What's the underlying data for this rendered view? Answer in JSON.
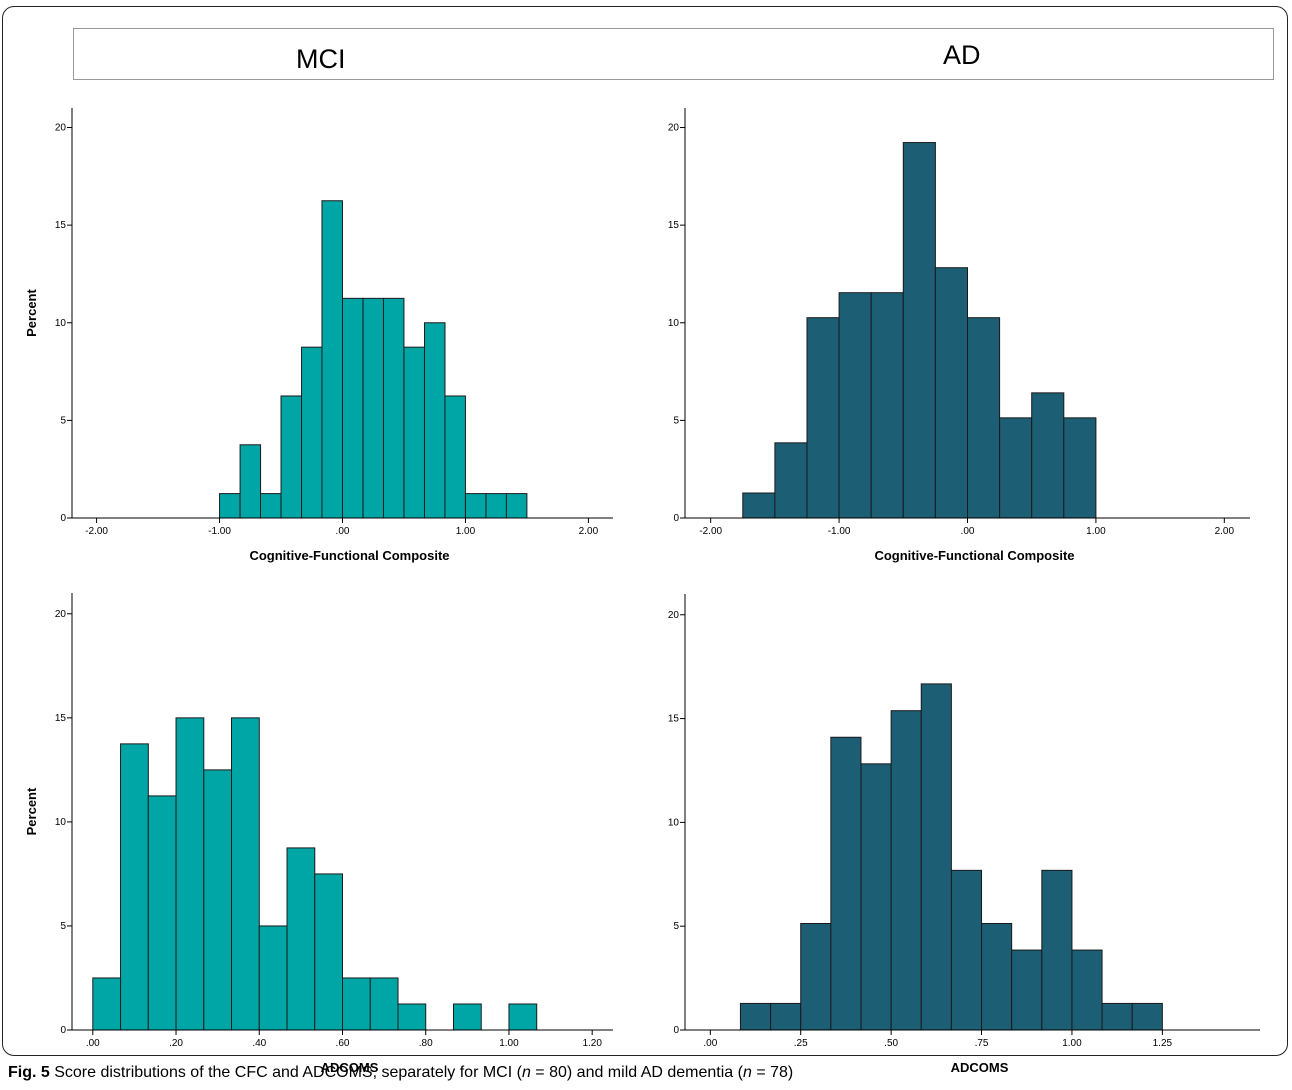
{
  "header": {
    "left_label": "MCI",
    "right_label": "AD"
  },
  "caption": {
    "fig_label": "Fig. 5",
    "text_a": " Score distributions of the CFC and ADCOMS, separately for MCI (",
    "n_var1": "n",
    "text_b": " = 80) and mild AD dementia (",
    "n_var2": "n",
    "text_c": " = 78)"
  },
  "colors": {
    "mci": "#00a6a6",
    "ad": "#1c5e74",
    "stroke": "#1a1a1a"
  },
  "chart_data": [
    {
      "id": "mci-cfc",
      "type": "bar",
      "group": "MCI",
      "xlabel": "Cognitive-Functional Composite",
      "ylabel": "Percent",
      "xlim": [
        -2.2,
        2.2
      ],
      "ylim": [
        0,
        21
      ],
      "xticks": [
        -2,
        -1,
        0,
        1,
        2
      ],
      "xtick_labels": [
        "-2.00",
        "-1.00",
        ".00",
        "1.00",
        "2.00"
      ],
      "yticks": [
        0,
        5,
        10,
        15,
        20
      ],
      "bin_width": 0.166667,
      "bin_starts": [
        -1.0,
        -0.833,
        -0.667,
        -0.5,
        -0.333,
        -0.167,
        0.0,
        0.167,
        0.333,
        0.5,
        0.667,
        0.833,
        1.0,
        1.167,
        1.333
      ],
      "values": [
        1.25,
        3.75,
        1.25,
        6.25,
        8.75,
        16.25,
        11.25,
        11.25,
        11.25,
        8.75,
        10.0,
        6.25,
        1.25,
        1.25,
        1.25
      ]
    },
    {
      "id": "ad-cfc",
      "type": "bar",
      "group": "AD",
      "xlabel": "Cognitive-Functional Composite",
      "ylabel": "",
      "xlim": [
        -2.2,
        2.2
      ],
      "ylim": [
        0,
        21
      ],
      "xticks": [
        -2,
        -1,
        0,
        1,
        2
      ],
      "xtick_labels": [
        "-2.00",
        "-1.00",
        ".00",
        "1.00",
        "2.00"
      ],
      "yticks": [
        0,
        5,
        10,
        15,
        20
      ],
      "bin_width": 0.25,
      "bin_starts": [
        -1.75,
        -1.5,
        -1.25,
        -1.0,
        -0.75,
        -0.5,
        -0.25,
        0.0,
        0.25,
        0.5,
        0.75
      ],
      "values": [
        1.28,
        3.85,
        10.26,
        11.54,
        11.54,
        19.23,
        12.82,
        10.26,
        5.13,
        6.41,
        5.13
      ]
    },
    {
      "id": "mci-adcoms",
      "type": "bar",
      "group": "MCI",
      "xlabel": "ADCOMS",
      "ylabel": "Percent",
      "xlim": [
        -0.05,
        1.25
      ],
      "ylim": [
        0,
        21
      ],
      "xticks": [
        0,
        0.2,
        0.4,
        0.6,
        0.8,
        1.0,
        1.2
      ],
      "xtick_labels": [
        ".00",
        ".20",
        ".40",
        ".60",
        ".80",
        "1.00",
        "1.20"
      ],
      "yticks": [
        0,
        5,
        10,
        15,
        20
      ],
      "bin_width": 0.0667,
      "bin_starts": [
        0.0,
        0.0667,
        0.1333,
        0.2,
        0.2667,
        0.3333,
        0.4,
        0.4667,
        0.5333,
        0.6,
        0.6667,
        0.7333,
        0.8,
        0.8667,
        0.9333,
        1.0
      ],
      "values": [
        2.5,
        13.75,
        11.25,
        15.0,
        12.5,
        15.0,
        5.0,
        8.75,
        7.5,
        2.5,
        2.5,
        1.25,
        0,
        1.25,
        0,
        1.25
      ]
    },
    {
      "id": "ad-adcoms",
      "type": "bar",
      "group": "AD",
      "xlabel": "ADCOMS",
      "ylabel": "",
      "xlim": [
        -0.07,
        1.52
      ],
      "ylim": [
        0,
        21
      ],
      "xticks": [
        0,
        0.25,
        0.5,
        0.75,
        1.0,
        1.25
      ],
      "xtick_labels": [
        ".00",
        ".25",
        ".50",
        ".75",
        "1.00",
        "1.25"
      ],
      "yticks": [
        0,
        5,
        10,
        15,
        20
      ],
      "bin_width": 0.0833,
      "bin_starts": [
        0.0833,
        0.1667,
        0.25,
        0.3333,
        0.4167,
        0.5,
        0.5833,
        0.6667,
        0.75,
        0.8333,
        0.9167,
        1.0,
        1.0833,
        1.1667
      ],
      "values": [
        1.28,
        1.28,
        5.13,
        14.1,
        12.82,
        15.38,
        16.67,
        7.69,
        5.13,
        3.85,
        7.69,
        3.85,
        1.28,
        1.28
      ]
    }
  ]
}
